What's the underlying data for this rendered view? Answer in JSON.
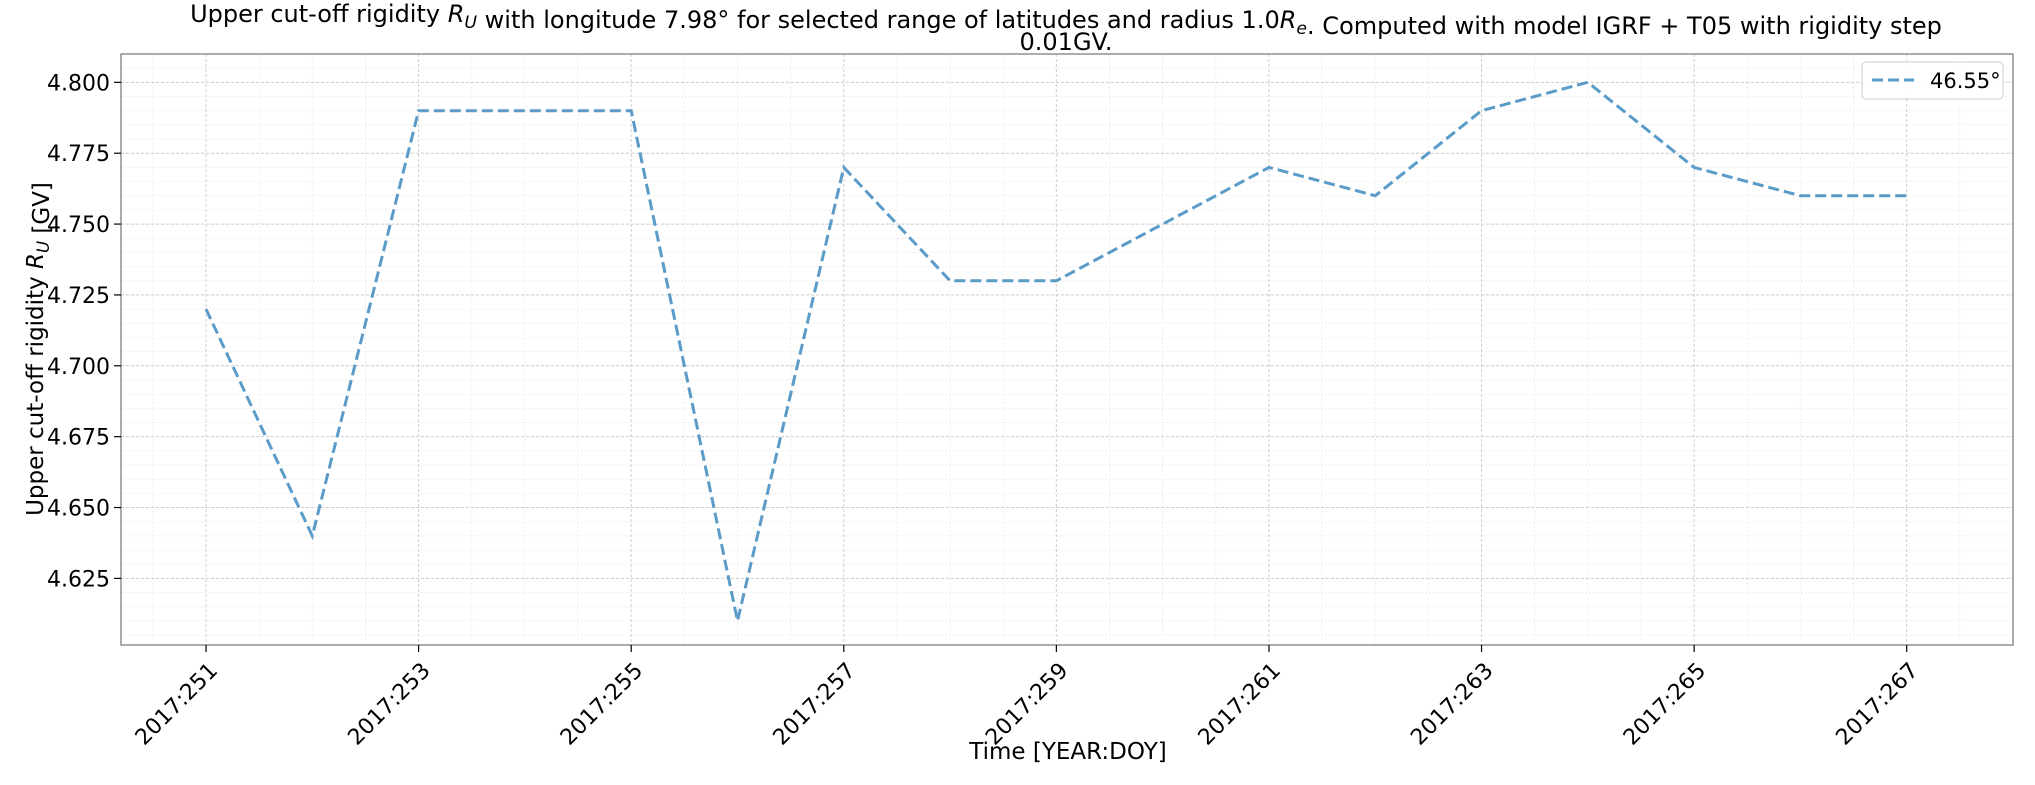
{
  "chart_data": {
    "type": "line",
    "title_line1": "Upper cut-off rigidity R_U with longitude 7.98° for selected range of latitudes and radius 1.0R_e. Computed with model IGRF + T05 with rigidity step",
    "title_line2": "0.01GV.",
    "xlabel": "Time [YEAR:DOY]",
    "ylabel": "Upper cut-off rigidity R_U [GV]",
    "x_tick_labels": [
      "2017:251",
      "2017:253",
      "2017:255",
      "2017:257",
      "2017:259",
      "2017:261",
      "2017:263",
      "2017:265",
      "2017:267"
    ],
    "y_tick_labels": [
      "4.625",
      "4.650",
      "4.675",
      "4.700",
      "4.725",
      "4.750",
      "4.775",
      "4.800"
    ],
    "y_ticks": [
      4.625,
      4.65,
      4.675,
      4.7,
      4.725,
      4.75,
      4.775,
      4.8
    ],
    "x_ticks": [
      251,
      253,
      255,
      257,
      259,
      261,
      263,
      265,
      267
    ],
    "xlim": [
      250.2,
      268.0
    ],
    "ylim": [
      4.6015,
      4.81
    ],
    "grid": true,
    "legend_position": "top-right",
    "series": [
      {
        "name": "46.55°",
        "color": "#5a9bc8",
        "linestyle": "dashed",
        "x": [
          251,
          252,
          253,
          254,
          255,
          256,
          257,
          258,
          259,
          260,
          261,
          262,
          263,
          264,
          265,
          266,
          267
        ],
        "y": [
          4.72,
          4.64,
          4.79,
          4.79,
          4.79,
          4.61,
          4.77,
          4.73,
          4.73,
          4.75,
          4.77,
          4.76,
          4.79,
          4.8,
          4.77,
          4.76,
          4.76
        ]
      }
    ]
  }
}
